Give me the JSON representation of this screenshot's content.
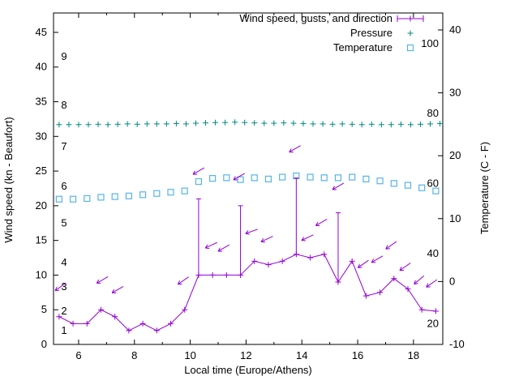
{
  "chart_data": {
    "type": "line",
    "title": "",
    "xlabel": "Local time (Europe/Athens)",
    "ylabel_left": "Wind speed (kn - Beaufort)",
    "ylabel_right": "Temperature (C - F)",
    "xlim": [
      5.1,
      19.05
    ],
    "ylim_left": [
      0,
      47.8
    ],
    "ylim_right": [
      -10,
      42.7
    ],
    "x_ticks": [
      6,
      8,
      10,
      12,
      14,
      16,
      18
    ],
    "x_minor_ticks": [
      7,
      9,
      11,
      13,
      15,
      17
    ],
    "y_ticks_left": [
      0,
      5,
      10,
      15,
      20,
      25,
      30,
      35,
      40,
      45
    ],
    "y_ticks_right": [
      -10,
      0,
      10,
      20,
      30,
      40
    ],
    "grid": false,
    "beaufort_scale_labels": [
      {
        "label": "1",
        "kn": 2.0
      },
      {
        "label": "2",
        "kn": 4.8
      },
      {
        "label": "3",
        "kn": 8.3
      },
      {
        "label": "4",
        "kn": 11.8
      },
      {
        "label": "5",
        "kn": 17.5
      },
      {
        "label": "6",
        "kn": 22.8
      },
      {
        "label": "7",
        "kn": 28.5
      },
      {
        "label": "8",
        "kn": 34.5
      },
      {
        "label": "9",
        "kn": 41.5
      }
    ],
    "fahrenheit_scale_labels": [
      {
        "label": "20",
        "c": -6.7
      },
      {
        "label": "40",
        "c": 4.4
      },
      {
        "label": "60",
        "c": 15.6
      },
      {
        "label": "80",
        "c": 26.7
      },
      {
        "label": "100",
        "c": 37.8
      }
    ],
    "colors": {
      "wind": "#9400d3",
      "pressure": "#00897b",
      "temperature": "#56b4e9",
      "axis": "#000000",
      "background": "#ffffff"
    },
    "legend": {
      "position": "top-right-inside",
      "items": [
        {
          "label": "Wind speed, gusts, and direction",
          "series": "wind",
          "marker": "errorbar-line"
        },
        {
          "label": "Pressure",
          "series": "pressure",
          "marker": "plus"
        },
        {
          "label": "Temperature",
          "series": "temperature",
          "marker": "open-square"
        }
      ]
    },
    "series": {
      "wind": {
        "name": "Wind speed, gusts, and direction",
        "axis": "left",
        "x": [
          5.3,
          5.8,
          6.3,
          6.8,
          7.3,
          7.8,
          8.3,
          8.8,
          9.3,
          9.8,
          10.3,
          10.8,
          11.3,
          11.8,
          12.3,
          12.8,
          13.3,
          13.8,
          14.3,
          14.8,
          15.3,
          15.8,
          16.3,
          16.8,
          17.3,
          17.8,
          18.3,
          18.8
        ],
        "values": [
          4,
          3,
          3,
          5,
          4,
          2,
          3,
          2,
          3,
          5,
          10,
          10,
          10,
          10,
          12,
          11.5,
          12,
          13,
          12.5,
          13,
          9,
          12,
          7,
          7.5,
          9.5,
          8,
          5,
          4.8
        ]
      },
      "wind_gusts": [
        {
          "x": 10.3,
          "from": 10,
          "to": 21
        },
        {
          "x": 11.8,
          "from": 10,
          "to": 20
        },
        {
          "x": 13.8,
          "from": 13,
          "to": 24
        },
        {
          "x": 15.3,
          "from": 9,
          "to": 19
        }
      ],
      "wind_direction_arrows": [
        {
          "x": 5.35,
          "kn": 8.3,
          "angle": 145
        },
        {
          "x": 6.85,
          "kn": 9.3,
          "angle": 150
        },
        {
          "x": 7.4,
          "kn": 7.9,
          "angle": 150
        },
        {
          "x": 9.75,
          "kn": 9.2,
          "angle": 145
        },
        {
          "x": 10.3,
          "kn": 25.0,
          "angle": 150
        },
        {
          "x": 10.75,
          "kn": 14.3,
          "angle": 155
        },
        {
          "x": 11.2,
          "kn": 13.9,
          "angle": 150
        },
        {
          "x": 11.75,
          "kn": 24.2,
          "angle": 150
        },
        {
          "x": 12.2,
          "kn": 16.3,
          "angle": 160
        },
        {
          "x": 12.75,
          "kn": 15.2,
          "angle": 155
        },
        {
          "x": 13.75,
          "kn": 28.2,
          "angle": 150
        },
        {
          "x": 14.2,
          "kn": 15.4,
          "angle": 155
        },
        {
          "x": 14.7,
          "kn": 17.6,
          "angle": 150
        },
        {
          "x": 15.3,
          "kn": 22.8,
          "angle": 150
        },
        {
          "x": 16.2,
          "kn": 11.6,
          "angle": 145
        },
        {
          "x": 16.7,
          "kn": 12.3,
          "angle": 150
        },
        {
          "x": 17.2,
          "kn": 14.3,
          "angle": 145
        },
        {
          "x": 17.7,
          "kn": 11.2,
          "angle": 145
        },
        {
          "x": 18.2,
          "kn": 9.3,
          "angle": 140
        },
        {
          "x": 18.65,
          "kn": 8.8,
          "angle": 145
        }
      ],
      "pressure": {
        "name": "Pressure",
        "axis": "left",
        "x": [
          5.3,
          5.65,
          6.0,
          6.35,
          6.7,
          7.05,
          7.4,
          7.75,
          8.1,
          8.45,
          8.8,
          9.15,
          9.5,
          9.85,
          10.2,
          10.55,
          10.9,
          11.25,
          11.6,
          11.95,
          12.3,
          12.65,
          13.0,
          13.35,
          13.7,
          14.05,
          14.4,
          14.75,
          15.1,
          15.45,
          15.8,
          16.15,
          16.5,
          16.85,
          17.2,
          17.55,
          17.9,
          18.25,
          18.6,
          18.95
        ],
        "values": [
          31.7,
          31.7,
          31.7,
          31.7,
          31.75,
          31.7,
          31.75,
          31.8,
          31.75,
          31.8,
          31.8,
          31.8,
          31.85,
          31.8,
          31.9,
          31.95,
          32.0,
          32.0,
          32.05,
          32.0,
          31.95,
          31.9,
          31.9,
          31.95,
          31.9,
          31.85,
          31.8,
          31.8,
          31.75,
          31.8,
          31.75,
          31.7,
          31.75,
          31.7,
          31.7,
          31.75,
          31.7,
          31.75,
          31.8,
          31.85
        ]
      },
      "temperature": {
        "name": "Temperature",
        "axis": "right",
        "x": [
          5.3,
          5.8,
          6.3,
          6.8,
          7.3,
          7.8,
          8.3,
          8.8,
          9.3,
          9.8,
          10.3,
          10.8,
          11.3,
          11.8,
          12.3,
          12.8,
          13.3,
          13.8,
          14.3,
          14.8,
          15.3,
          15.8,
          16.3,
          16.8,
          17.3,
          17.8,
          18.3,
          18.8
        ],
        "values": [
          13.1,
          13.1,
          13.2,
          13.4,
          13.5,
          13.6,
          13.8,
          14.0,
          14.2,
          14.4,
          15.9,
          16.4,
          16.5,
          16.2,
          16.5,
          16.3,
          16.6,
          16.8,
          16.6,
          16.5,
          16.5,
          16.6,
          16.3,
          16.0,
          15.6,
          15.3,
          14.9,
          14.4
        ]
      }
    }
  }
}
